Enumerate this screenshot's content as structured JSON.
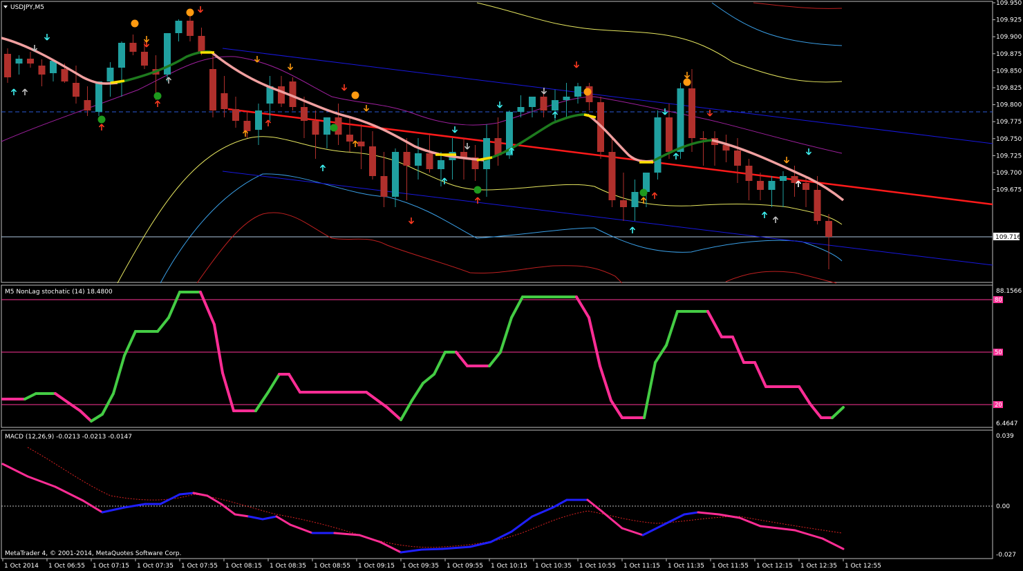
{
  "main": {
    "symbol_label": "USDJPY,M5",
    "current_price": "109.716",
    "price_ticks": [
      "109.950",
      "109.925",
      "109.900",
      "109.875",
      "109.850",
      "109.825",
      "109.800",
      "109.775",
      "109.750",
      "109.725",
      "109.700",
      "109.675"
    ],
    "colors": {
      "bull": "#20a0a0",
      "bear": "#b0302c",
      "trend": "#ff0000",
      "channel": "#1818e0",
      "ma_rising": "#1e7a1e",
      "ma_falling": "#f0a0a0"
    }
  },
  "stochastic": {
    "title": "M5 NonLag stochatic (14) 18.4800",
    "max_label": "88.1566",
    "min_label": "6.4647",
    "levels": [
      "80",
      "50",
      "20"
    ],
    "colors": {
      "up": "#44cc44",
      "down": "#ff2d95",
      "level": "#ff3399"
    }
  },
  "macd": {
    "title": "MACD (12,26,9) -0.0213 -0.0213 -0.0147",
    "ticks": [
      "0.039",
      "0.00",
      "-0.027"
    ],
    "colors": {
      "main_down": "#ff2d95",
      "main_up": "#2020ff",
      "signal": "#dd2222"
    }
  },
  "footer": {
    "copyright": "MetaTrader 4, © 2001-2014, MetaQuotes Software Corp."
  },
  "time_axis": {
    "labels": [
      "1 Oct 2014",
      "1 Oct 06:55",
      "1 Oct 07:15",
      "1 Oct 07:35",
      "1 Oct 07:55",
      "1 Oct 08:15",
      "1 Oct 08:35",
      "1 Oct 08:55",
      "1 Oct 09:15",
      "1 Oct 09:35",
      "1 Oct 09:55",
      "1 Oct 10:15",
      "1 Oct 10:35",
      "1 Oct 10:55",
      "1 Oct 11:15",
      "1 Oct 11:35",
      "1 Oct 11:55",
      "1 Oct 12:15",
      "1 Oct 12:35",
      "1 Oct 12:55"
    ]
  }
}
